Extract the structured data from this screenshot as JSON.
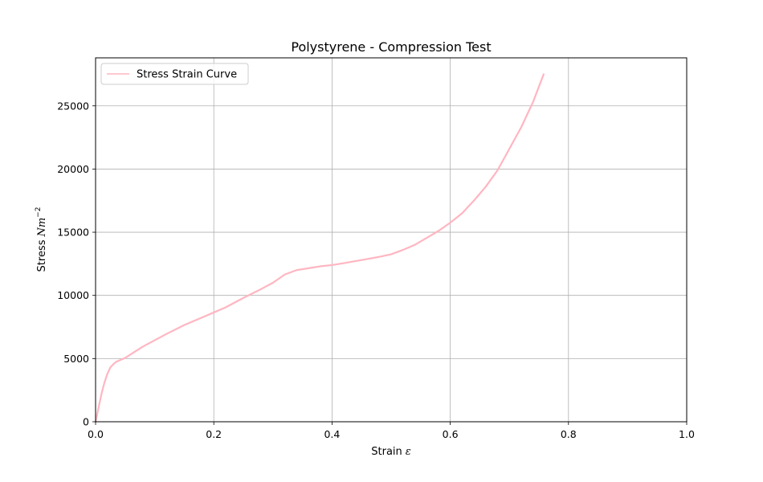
{
  "chart_data": {
    "type": "line",
    "title": "Polystyrene - Compression Test",
    "xlabel": "Strain",
    "xlabel_symbol": "ε",
    "ylabel": "Stress",
    "ylabel_unit": "Nm",
    "ylabel_unit_exp": "−2",
    "xlim": [
      0.0,
      1.0
    ],
    "ylim": [
      0,
      28800
    ],
    "xticks": [
      0.0,
      0.2,
      0.4,
      0.6,
      0.8,
      1.0
    ],
    "xtick_labels": [
      "0.0",
      "0.2",
      "0.4",
      "0.6",
      "0.8",
      "1.0"
    ],
    "yticks": [
      0,
      5000,
      10000,
      15000,
      20000,
      25000
    ],
    "ytick_labels": [
      "0",
      "5000",
      "10000",
      "15000",
      "20000",
      "25000"
    ],
    "grid": true,
    "legend_position": "top-left",
    "series": [
      {
        "name": "Stress Strain Curve",
        "color": "#ffb6c1",
        "x": [
          0.0,
          0.005,
          0.01,
          0.015,
          0.02,
          0.025,
          0.03,
          0.035,
          0.04,
          0.05,
          0.06,
          0.08,
          0.1,
          0.12,
          0.15,
          0.18,
          0.2,
          0.22,
          0.25,
          0.28,
          0.3,
          0.32,
          0.34,
          0.36,
          0.38,
          0.4,
          0.42,
          0.45,
          0.48,
          0.5,
          0.52,
          0.54,
          0.56,
          0.58,
          0.6,
          0.62,
          0.64,
          0.66,
          0.68,
          0.7,
          0.72,
          0.74,
          0.758
        ],
        "y": [
          0,
          1100,
          2200,
          3100,
          3800,
          4300,
          4550,
          4750,
          4850,
          5050,
          5350,
          5950,
          6450,
          6950,
          7650,
          8250,
          8650,
          9050,
          9800,
          10500,
          11000,
          11650,
          12000,
          12150,
          12300,
          12400,
          12550,
          12800,
          13050,
          13250,
          13600,
          14000,
          14550,
          15100,
          15750,
          16500,
          17500,
          18600,
          19900,
          21600,
          23300,
          25300,
          27500
        ]
      }
    ]
  }
}
